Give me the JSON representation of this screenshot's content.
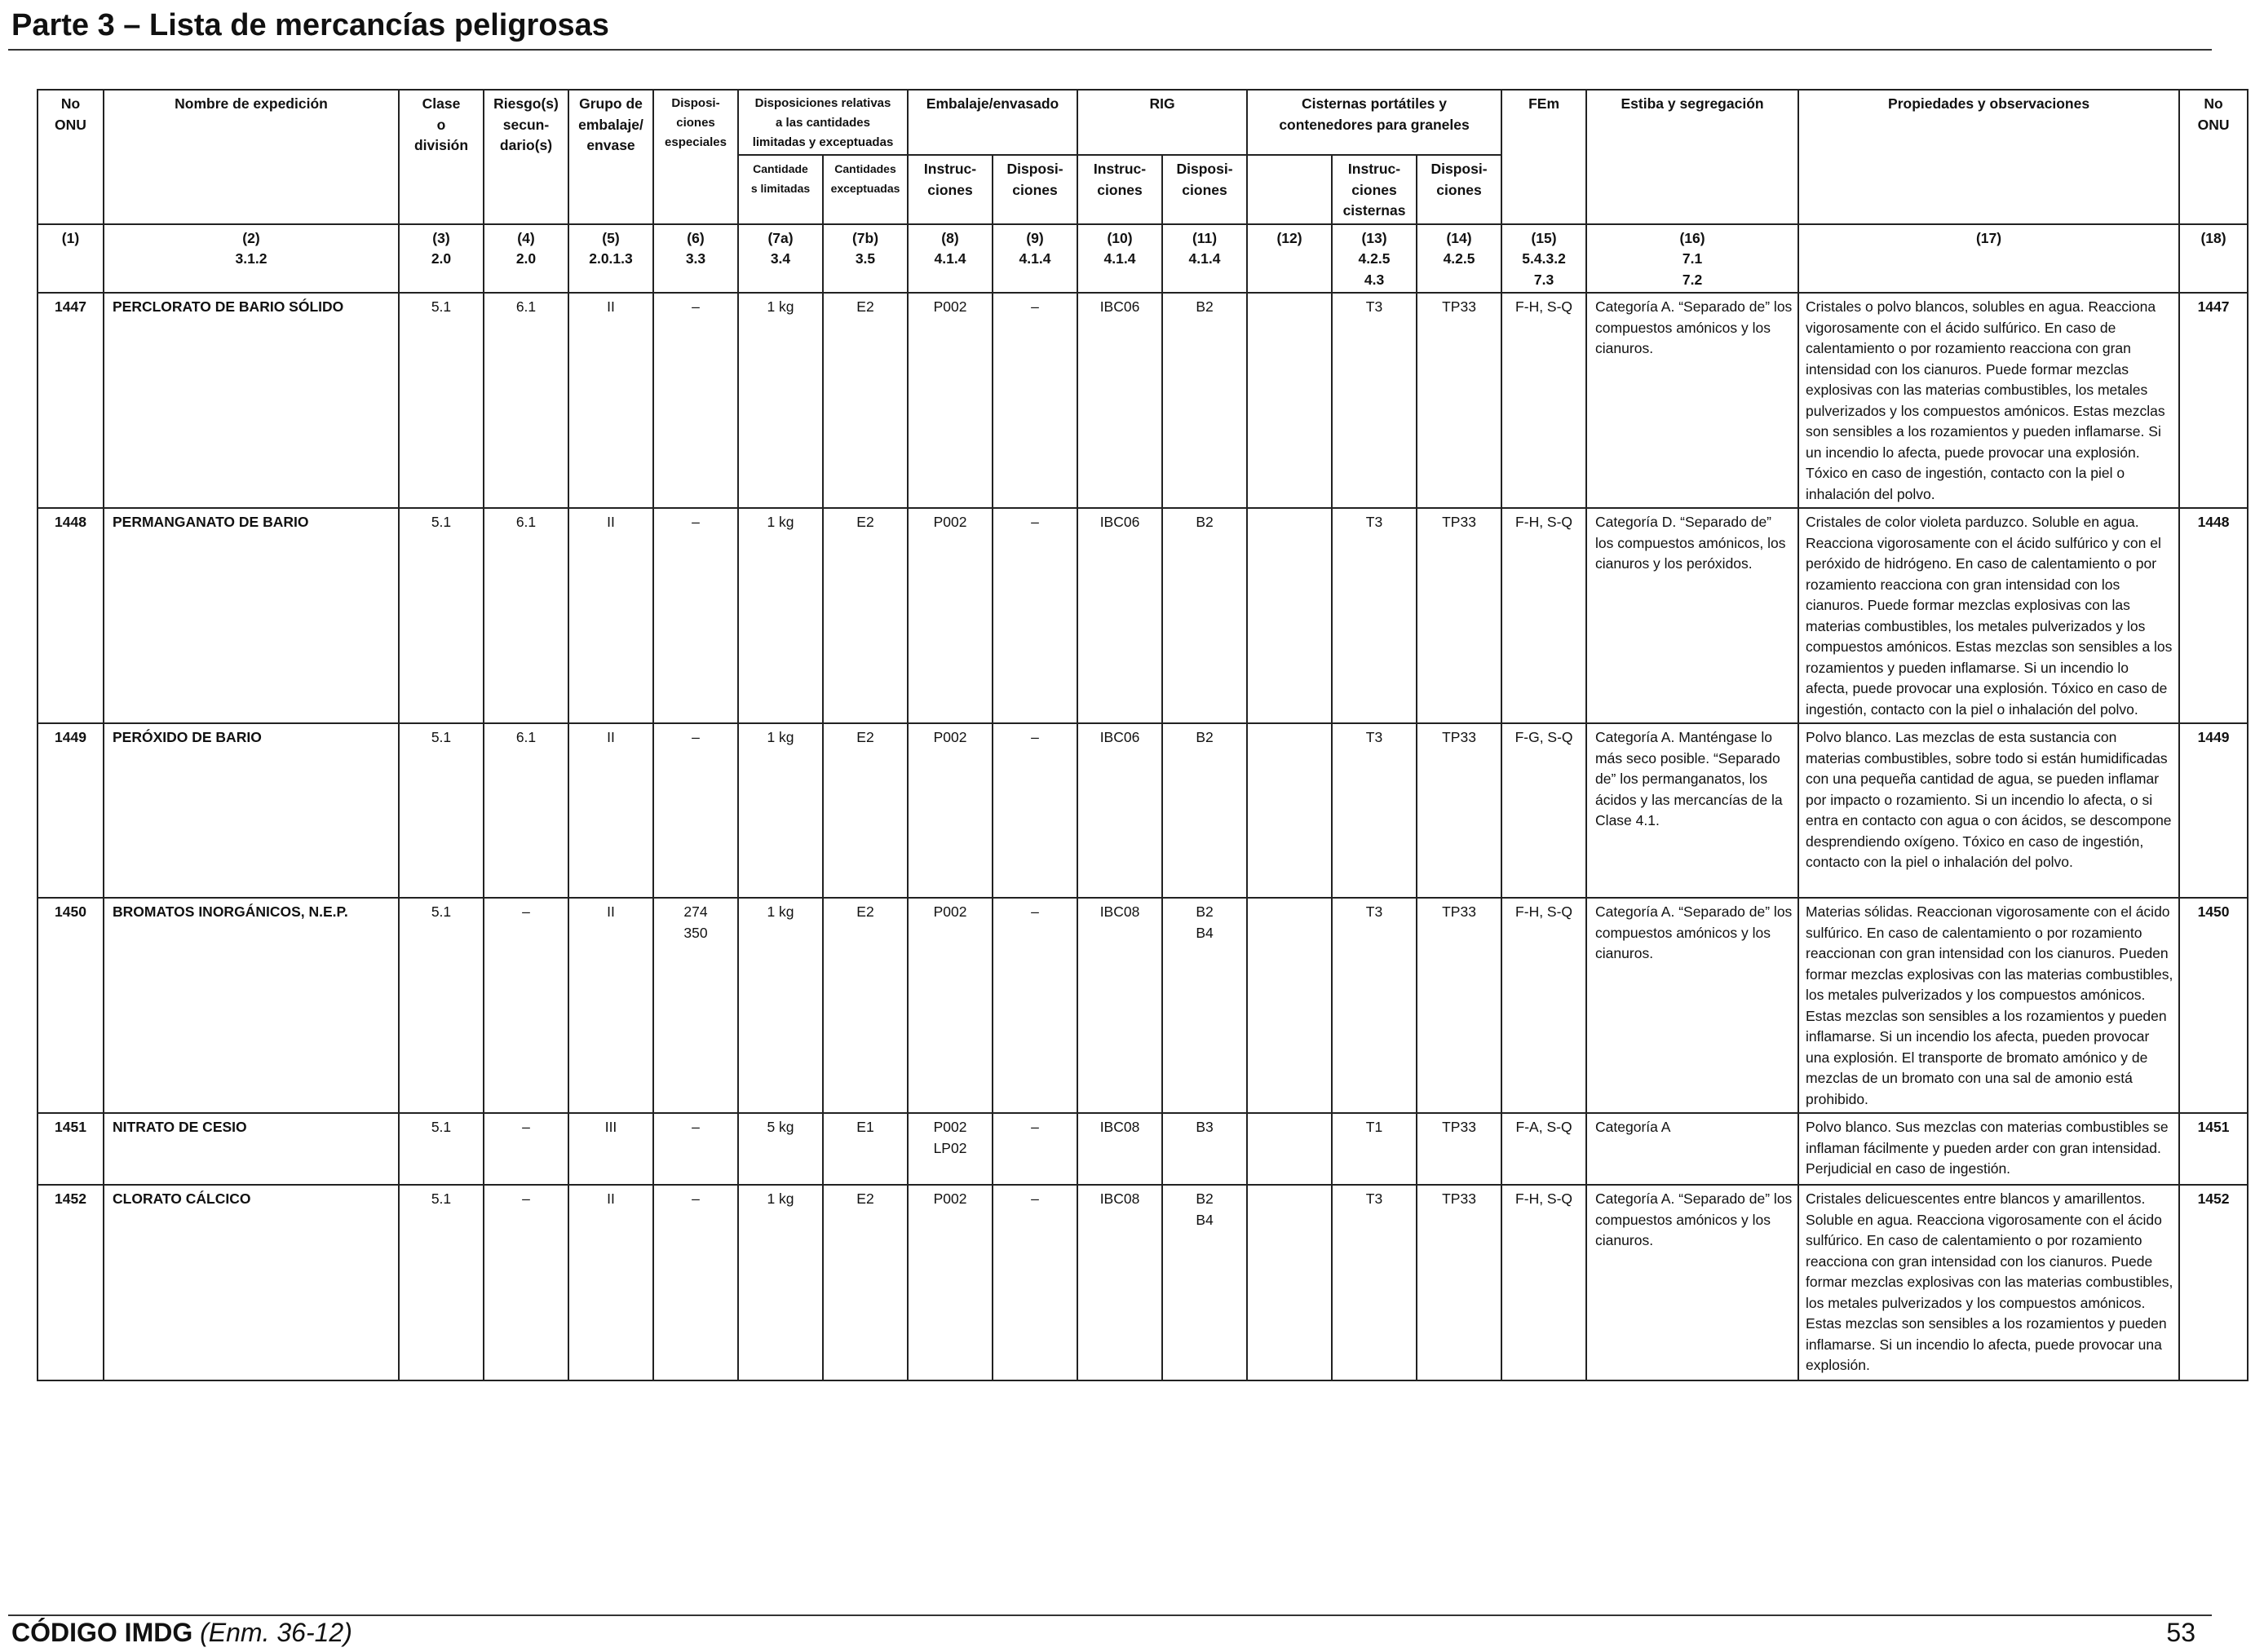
{
  "page_title": "Parte 3 – Lista de mercancías peligrosas",
  "headers": {
    "no_onu": "No\nONU",
    "nombre": "Nombre de expedición",
    "clase": "Clase\no\ndivisión",
    "riesgos": "Riesgo(s)\nsecun-\ndario(s)",
    "grupo": "Grupo de\nembalaje/\nenvase",
    "disposiciones": "Disposi-\nciones\nespeciales",
    "cantidades": "Disposiciones relativas\na las cantidades\nlimitadas y exceptuadas",
    "embalaje": "Embalaje/envasado",
    "rig": "RIG",
    "cisternas": "Cisternas portátiles y\ncontenedores para graneles",
    "fem": "FEm",
    "estiba": "Estiba y segregación",
    "propiedades": "Propiedades y observaciones",
    "no_onu_right": "No\nONU",
    "sub_7a": "Cantidade\ns limitadas",
    "sub_7b": "Cantidades\nexceptuadas",
    "sub_8": "Instruc-\nciones",
    "sub_9": "Disposi-\nciones",
    "sub_10": "Instruc-\nciones",
    "sub_11": "Disposi-\nciones",
    "sub_13": "Instruc-\nciones\ncisternas",
    "sub_14": "Disposi-\nciones"
  },
  "column_refs": [
    "(1)",
    "(2)\n3.1.2",
    "(3)\n2.0",
    "(4)\n2.0",
    "(5)\n2.0.1.3",
    "(6)\n3.3",
    "(7a)\n3.4",
    "(7b)\n3.5",
    "(8)\n4.1.4",
    "(9)\n4.1.4",
    "(10)\n4.1.4",
    "(11)\n4.1.4",
    "(12)",
    "(13)\n4.2.5\n4.3",
    "(14)\n4.2.5",
    "(15)\n5.4.3.2\n7.3",
    "(16)\n7.1\n7.2",
    "(17)",
    "(18)"
  ],
  "rows": [
    {
      "onu": "1447",
      "nombre": "PERCLORATO DE BARIO SÓLIDO",
      "clase": "5.1",
      "riesgo": "6.1",
      "grupo": "II",
      "disp_esp": "–",
      "cant_lim": "1 kg",
      "cant_exc": "E2",
      "emb_instr": "P002",
      "emb_disp": "–",
      "rig_instr": "IBC06",
      "rig_disp": "B2",
      "col12": "",
      "cist_instr": "T3",
      "cist_disp": "TP33",
      "fem": "F-H, S-Q",
      "estiba": "Categoría A. “Separado de” los compuestos amónicos y los cianuros.",
      "propiedades": "Cristales o polvo blancos, solubles en agua. Reacciona vigorosamente con el ácido sulfúrico. En caso de calentamiento o por rozamiento reacciona con gran intensidad con los cianuros. Puede formar mezclas explosivas con las materias combustibles, los metales pulverizados y los compuestos amónicos. Estas mezclas son sensibles a los rozamientos y pueden inflamarse. Si un incendio lo afecta, puede provocar una explosión. Tóxico en caso de ingestión, contacto con la piel o inhalación del polvo.",
      "onu_r": "1447"
    },
    {
      "onu": "1448",
      "nombre": "PERMANGANATO DE BARIO",
      "clase": "5.1",
      "riesgo": "6.1",
      "grupo": "II",
      "disp_esp": "–",
      "cant_lim": "1 kg",
      "cant_exc": "E2",
      "emb_instr": "P002",
      "emb_disp": "–",
      "rig_instr": "IBC06",
      "rig_disp": "B2",
      "col12": "",
      "cist_instr": "T3",
      "cist_disp": "TP33",
      "fem": "F-H, S-Q",
      "estiba": "Categoría D. “Separado de” los compuestos amónicos, los cianuros y los peróxidos.",
      "propiedades": "Cristales de color violeta parduzco. Soluble en agua. Reacciona vigorosamente con el ácido sulfúrico y con el peróxido de hidrógeno. En caso de calentamiento o por rozamiento reacciona con gran intensidad con los cianuros. Puede formar mezclas explosivas con las materias combustibles, los metales pulverizados y los compuestos amónicos. Estas mezclas son sensibles a los rozamientos y pueden inflamarse. Si un incendio lo afecta, puede provocar una explosión. Tóxico en caso de ingestión, contacto con la piel o inhalación del polvo.",
      "onu_r": "1448"
    },
    {
      "onu": "1449",
      "nombre": "PERÓXIDO DE BARIO",
      "clase": "5.1",
      "riesgo": "6.1",
      "grupo": "II",
      "disp_esp": "–",
      "cant_lim": "1 kg",
      "cant_exc": "E2",
      "emb_instr": "P002",
      "emb_disp": "–",
      "rig_instr": "IBC06",
      "rig_disp": "B2",
      "col12": "",
      "cist_instr": "T3",
      "cist_disp": "TP33",
      "fem": "F-G, S-Q",
      "estiba": "Categoría A. Manténgase lo más seco posible. “Separado de” los permanganatos, los ácidos y las mercancías de la Clase 4.1.",
      "propiedades": "Polvo blanco. Las mezclas de esta sustancia con materias combustibles, sobre todo si están humidificadas con una pequeña cantidad de agua, se pueden inflamar por impacto o rozamiento. Si un incendio lo afecta, o si entra en contacto con agua o con ácidos, se descompone desprendiendo oxígeno. Tóxico en caso de ingestión, contacto con la piel o inhalación del polvo.",
      "onu_r": "1449"
    },
    {
      "onu": "1450",
      "nombre": "BROMATOS INORGÁNICOS, N.E.P.",
      "clase": "5.1",
      "riesgo": "–",
      "grupo": "II",
      "disp_esp": "274\n350",
      "cant_lim": "1 kg",
      "cant_exc": "E2",
      "emb_instr": "P002",
      "emb_disp": "–",
      "rig_instr": "IBC08",
      "rig_disp": "B2\nB4",
      "col12": "",
      "cist_instr": "T3",
      "cist_disp": "TP33",
      "fem": "F-H, S-Q",
      "estiba": "Categoría A. “Separado de” los compuestos amónicos y los cianuros.",
      "propiedades": "Materias sólidas. Reaccionan vigorosamente con el ácido sulfúrico. En caso de calentamiento o por rozamiento reaccionan con gran intensidad con los cianuros. Pueden formar mezclas explosivas con las materias combustibles, los metales pulverizados y los compuestos amónicos. Estas mezclas son sensibles a los rozamientos y pueden inflamarse. Si un incendio los afecta, pueden provocar una explosión. El transporte de bromato amónico y de mezclas de un bromato con una sal de amonio está prohibido.",
      "onu_r": "1450"
    },
    {
      "onu": "1451",
      "nombre": "NITRATO DE CESIO",
      "clase": "5.1",
      "riesgo": "–",
      "grupo": "III",
      "disp_esp": "–",
      "cant_lim": "5 kg",
      "cant_exc": "E1",
      "emb_instr": "P002\nLP02",
      "emb_disp": "–",
      "rig_instr": "IBC08",
      "rig_disp": "B3",
      "col12": "",
      "cist_instr": "T1",
      "cist_disp": "TP33",
      "fem": "F-A, S-Q",
      "estiba": "Categoría A",
      "propiedades": "Polvo blanco. Sus mezclas con materias combustibles se inflaman fácilmente y pueden arder con gran intensidad. Perjudicial en caso de ingestión.",
      "onu_r": "1451"
    },
    {
      "onu": "1452",
      "nombre": "CLORATO CÁLCICO",
      "clase": "5.1",
      "riesgo": "–",
      "grupo": "II",
      "disp_esp": "–",
      "cant_lim": "1 kg",
      "cant_exc": "E2",
      "emb_instr": "P002",
      "emb_disp": "–",
      "rig_instr": "IBC08",
      "rig_disp": "B2\nB4",
      "col12": "",
      "cist_instr": "T3",
      "cist_disp": "TP33",
      "fem": "F-H, S-Q",
      "estiba": "Categoría A. “Separado de” los compuestos amónicos y los cianuros.",
      "propiedades": "Cristales delicuescentes entre blancos y amarillentos. Soluble en agua. Reacciona vigorosamente con el ácido sulfúrico. En caso de calentamiento o por rozamiento reacciona con gran intensidad con los cianuros. Puede formar mezclas explosivas con las materias combustibles, los metales pulverizados y los compuestos amónicos. Estas mezclas son sensibles a los rozamientos y pueden inflamarse. Si un incendio lo afecta, puede provocar una explosión.",
      "onu_r": "1452"
    }
  ],
  "footer": {
    "code": "CÓDIGO IMDG",
    "amendment": "(Enm. 36-12)",
    "page_number": "53"
  }
}
